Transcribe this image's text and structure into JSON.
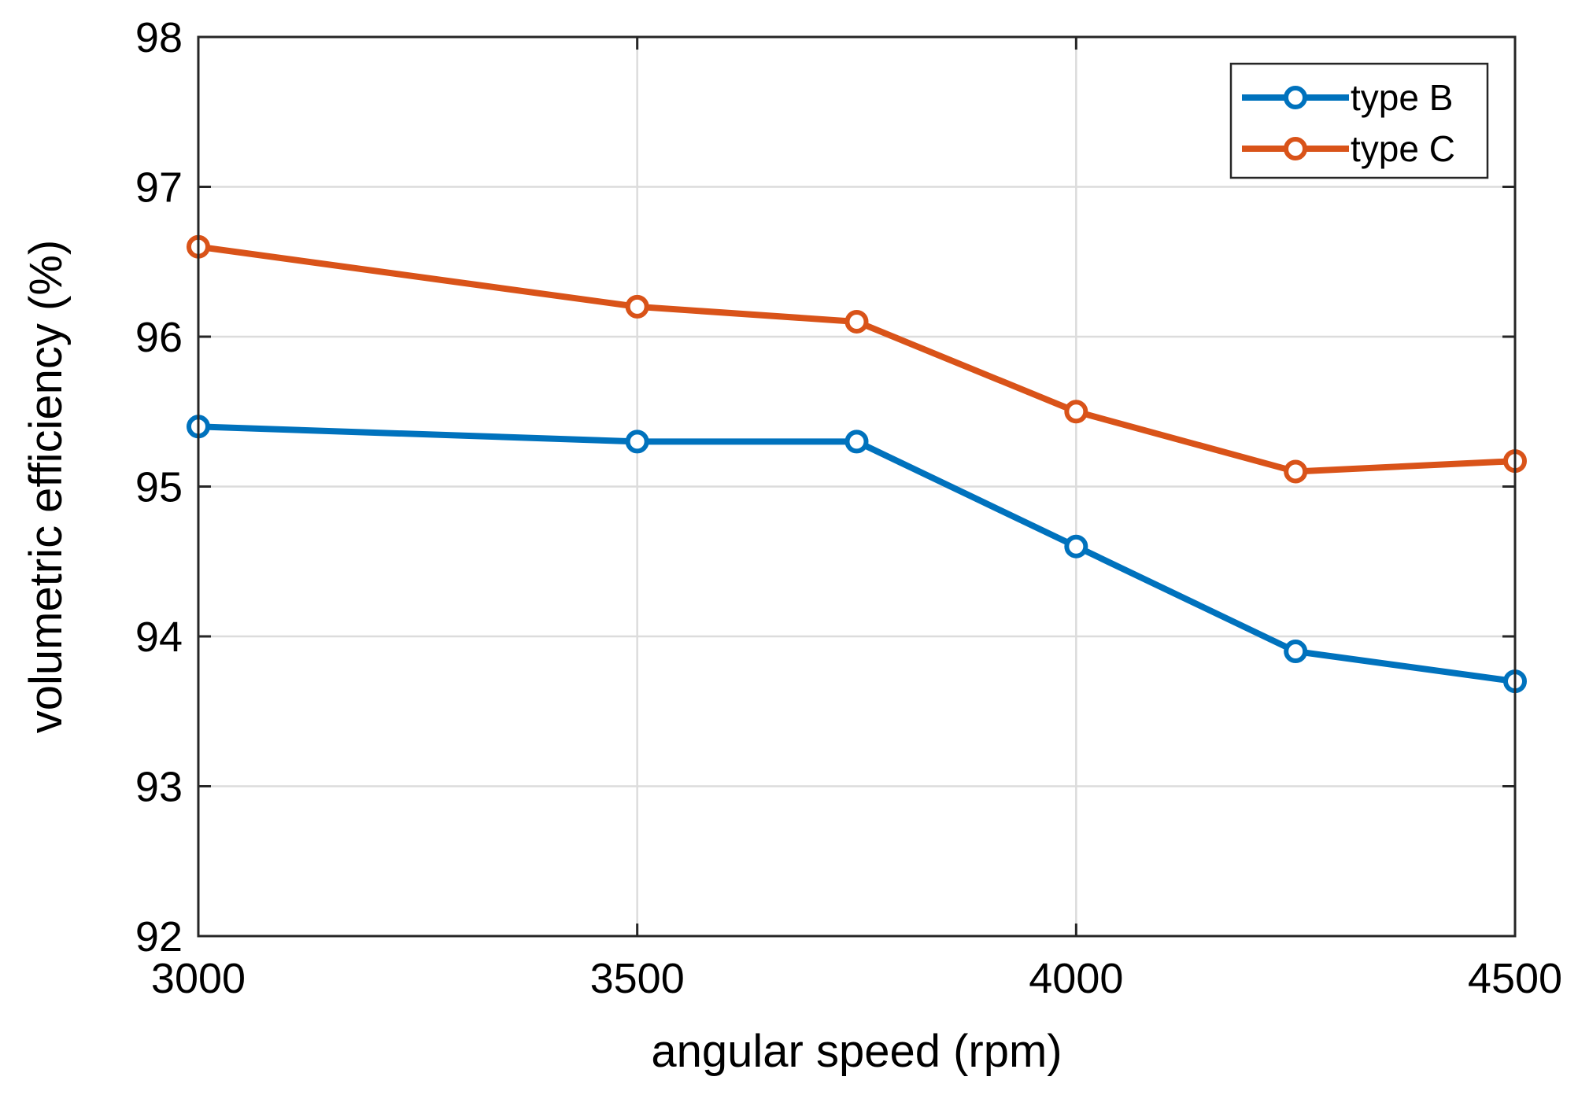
{
  "chart_data": {
    "type": "line",
    "title": "",
    "xlabel": "angular speed (rpm)",
    "ylabel": "volumetric efficiency (%)",
    "xlim": [
      3000,
      4500
    ],
    "ylim": [
      92,
      98
    ],
    "xticks": [
      3000,
      3500,
      4000,
      4500
    ],
    "yticks": [
      92,
      93,
      94,
      95,
      96,
      97,
      98
    ],
    "grid": true,
    "legend_position": "top-right",
    "series": [
      {
        "name": "type B",
        "color": "#0072BD",
        "x": [
          3000,
          3500,
          3750,
          4000,
          4250,
          4500
        ],
        "y": [
          95.4,
          95.3,
          95.3,
          94.6,
          93.9,
          93.7
        ]
      },
      {
        "name": "type C",
        "color": "#D95319",
        "x": [
          3000,
          3500,
          3750,
          4000,
          4250,
          4500
        ],
        "y": [
          96.6,
          96.2,
          96.1,
          95.5,
          95.1,
          95.17
        ]
      }
    ]
  }
}
